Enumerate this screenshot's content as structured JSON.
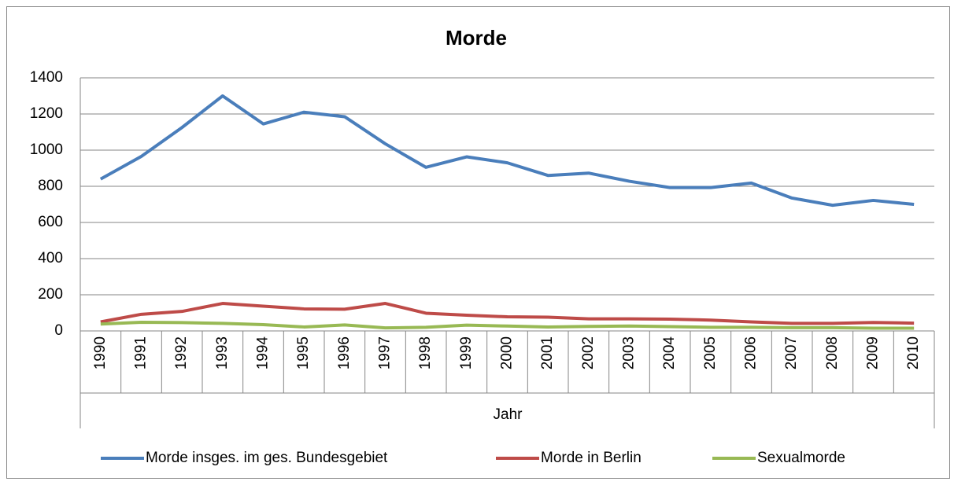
{
  "chart_data": {
    "type": "line",
    "title": "Morde",
    "x_label": "Jahr",
    "categories": [
      "1990",
      "1991",
      "1992",
      "1993",
      "1994",
      "1995",
      "1996",
      "1997",
      "1998",
      "1999",
      "2000",
      "2001",
      "2002",
      "2003",
      "2004",
      "2005",
      "2006",
      "2007",
      "2008",
      "2009",
      "2010"
    ],
    "series": [
      {
        "name": "Morde insges. im ges. Bundesgebiet",
        "color": "#4a7ebb",
        "values": [
          840,
          965,
          1125,
          1300,
          1145,
          1210,
          1185,
          1035,
          905,
          963,
          930,
          860,
          873,
          828,
          793,
          793,
          818,
          735,
          695,
          722,
          700
        ]
      },
      {
        "name": "Morde in Berlin",
        "color": "#be4b48",
        "values": [
          50,
          92,
          108,
          152,
          137,
          122,
          120,
          152,
          98,
          87,
          78,
          76,
          67,
          67,
          65,
          60,
          50,
          42,
          42,
          47,
          43
        ]
      },
      {
        "name": "Sexualmorde",
        "color": "#98b954",
        "values": [
          38,
          48,
          46,
          42,
          35,
          22,
          33,
          17,
          20,
          32,
          27,
          22,
          25,
          27,
          24,
          20,
          20,
          18,
          18,
          15,
          15
        ]
      }
    ],
    "ylim": [
      0,
      1400
    ],
    "yticks": [
      0,
      200,
      400,
      600,
      800,
      1000,
      1200,
      1400
    ],
    "grid": true,
    "legend": "bottom"
  }
}
